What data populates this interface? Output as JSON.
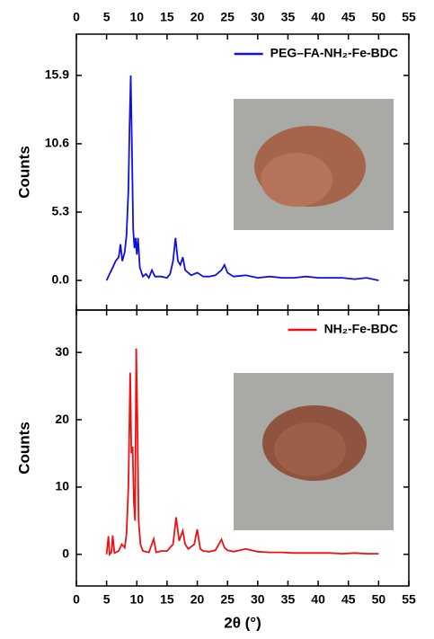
{
  "chart_data": [
    {
      "type": "line",
      "ylabel": "Counts",
      "x": [
        5,
        5.5,
        6,
        6.5,
        7,
        7.3,
        7.6,
        8,
        8.3,
        8.6,
        8.8,
        9,
        9.2,
        9.4,
        9.6,
        9.8,
        10,
        10.2,
        10.5,
        11,
        11.5,
        12,
        12.5,
        13,
        14,
        15,
        15.5,
        16,
        16.4,
        16.8,
        17.2,
        17.6,
        18,
        19,
        20,
        21,
        22,
        23,
        24,
        24.5,
        25,
        26,
        28,
        30,
        32,
        34,
        36,
        38,
        40,
        42,
        44,
        46,
        48,
        50
      ],
      "series": [
        {
          "name": "PEG–FA-NH₂-Fe-BDC",
          "color": "#1010e0",
          "values": [
            0,
            0.5,
            1,
            1.5,
            1.8,
            2.8,
            1.5,
            2.2,
            3.5,
            7,
            12,
            15.9,
            10,
            4,
            2.5,
            3.3,
            2,
            3.3,
            1,
            0.3,
            0.5,
            0.2,
            0.8,
            0.3,
            0.3,
            0.2,
            0.5,
            1.5,
            3.3,
            1.5,
            1.2,
            1.8,
            0.8,
            0.4,
            0.6,
            0.3,
            0.3,
            0.4,
            0.8,
            1.2,
            0.6,
            0.3,
            0.4,
            0.2,
            0.3,
            0.2,
            0.2,
            0.3,
            0.2,
            0.2,
            0.2,
            0.1,
            0.2,
            0
          ]
        }
      ],
      "xlim": [
        0,
        55
      ],
      "xticks": [
        0,
        5,
        10,
        15,
        20,
        25,
        30,
        35,
        40,
        45,
        50,
        55
      ],
      "ylim": [
        -2.3,
        19.1
      ],
      "yticks": [
        {
          "value": 0,
          "label": "0.0"
        },
        5.3,
        10.6,
        15.9
      ],
      "legend": "upper right"
    },
    {
      "type": "line",
      "ylabel": "Counts",
      "xlabel": "2θ (°)",
      "x": [
        5,
        5.3,
        5.5,
        5.8,
        6,
        6.3,
        7,
        7.5,
        8,
        8.3,
        8.6,
        8.9,
        9.1,
        9.3,
        9.5,
        9.7,
        9.9,
        10.1,
        10.3,
        10.6,
        11,
        12,
        12.8,
        13.2,
        14,
        15,
        16,
        16.5,
        17,
        17.6,
        18,
        18.5,
        19.5,
        20,
        20.5,
        21,
        22,
        23,
        24,
        24.5,
        25,
        26,
        28,
        30,
        32,
        34,
        36,
        38,
        40,
        42,
        44,
        46,
        48,
        50
      ],
      "series": [
        {
          "name": "NH₂-Fe-BDC",
          "color": "#ee1111",
          "values": [
            0,
            2.7,
            0,
            0.3,
            2.8,
            0.2,
            0.5,
            1.5,
            1,
            3,
            10,
            27,
            15,
            16,
            8,
            5,
            30.6,
            20,
            5,
            1.5,
            0.5,
            0.3,
            2.3,
            0.3,
            0.5,
            0.5,
            1.5,
            5.5,
            2,
            3.5,
            1.5,
            0.8,
            1.5,
            3.7,
            0.8,
            0.5,
            0.4,
            0.6,
            2.2,
            1,
            0.6,
            0.4,
            0.8,
            0.4,
            0.3,
            0.3,
            0.2,
            0.2,
            0.2,
            0.2,
            0.1,
            0.2,
            0.1,
            0.1
          ]
        }
      ],
      "xlim": [
        0,
        55
      ],
      "xticks": [
        0,
        5,
        10,
        15,
        20,
        25,
        30,
        35,
        40,
        45,
        50,
        55
      ],
      "ylim": [
        -4.7,
        36.3
      ],
      "yticks": [
        0,
        10,
        20,
        30
      ],
      "legend": "upper right"
    }
  ]
}
